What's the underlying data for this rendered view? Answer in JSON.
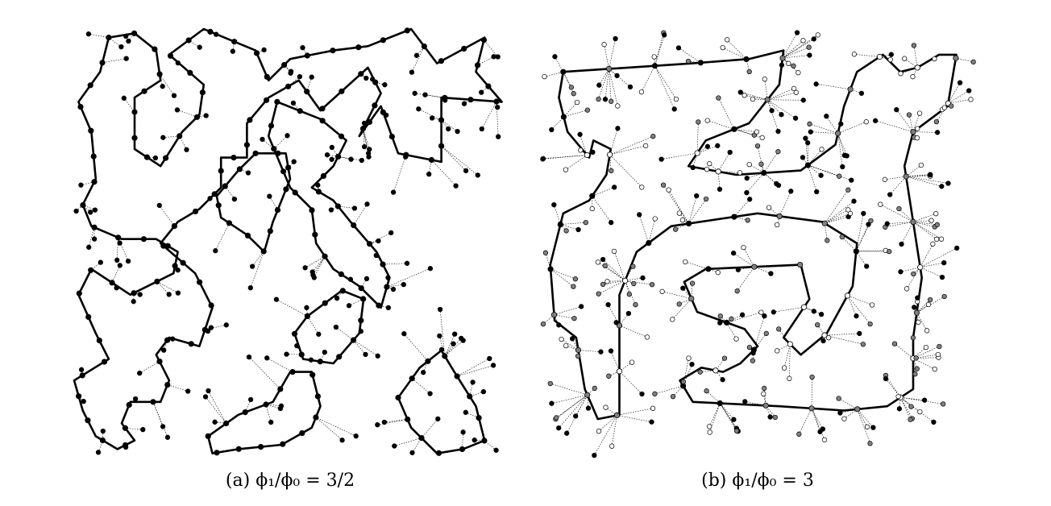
{
  "figure": {
    "panels": [
      {
        "id": "a",
        "caption_tag": "(a)",
        "caption_expr": "ϕ₁/ϕ₀ = 3/2",
        "seed": 17,
        "outer_points": 170,
        "path_points": 165,
        "node_colors": [
          "#000000"
        ],
        "loops": [
          [
            [
              0.08,
              0.02
            ],
            [
              0.14,
              0.01
            ],
            [
              0.19,
              0.05
            ],
            [
              0.2,
              0.12
            ],
            [
              0.14,
              0.16
            ],
            [
              0.14,
              0.28
            ],
            [
              0.2,
              0.32
            ],
            [
              0.25,
              0.24
            ],
            [
              0.29,
              0.2
            ],
            [
              0.3,
              0.13
            ],
            [
              0.22,
              0.06
            ],
            [
              0.3,
              0.0
            ],
            [
              0.42,
              0.05
            ],
            [
              0.45,
              0.12
            ],
            [
              0.5,
              0.07
            ],
            [
              0.6,
              0.05
            ],
            [
              0.68,
              0.04
            ],
            [
              0.78,
              0.0
            ],
            [
              0.84,
              0.08
            ],
            [
              0.95,
              0.02
            ],
            [
              0.93,
              0.1
            ],
            [
              0.99,
              0.17
            ],
            [
              0.85,
              0.16
            ],
            [
              0.85,
              0.31
            ],
            [
              0.75,
              0.29
            ],
            [
              0.71,
              0.18
            ],
            [
              0.66,
              0.25
            ],
            [
              0.71,
              0.15
            ],
            [
              0.68,
              0.09
            ],
            [
              0.57,
              0.19
            ],
            [
              0.52,
              0.12
            ],
            [
              0.45,
              0.16
            ],
            [
              0.4,
              0.22
            ],
            [
              0.4,
              0.3
            ],
            [
              0.34,
              0.3
            ],
            [
              0.34,
              0.37
            ],
            [
              0.29,
              0.42
            ],
            [
              0.24,
              0.45
            ],
            [
              0.2,
              0.5
            ],
            [
              0.28,
              0.57
            ],
            [
              0.32,
              0.65
            ],
            [
              0.29,
              0.74
            ],
            [
              0.22,
              0.72
            ],
            [
              0.19,
              0.76
            ],
            [
              0.22,
              0.82
            ],
            [
              0.2,
              0.87
            ],
            [
              0.13,
              0.87
            ],
            [
              0.11,
              0.92
            ],
            [
              0.14,
              0.96
            ],
            [
              0.1,
              0.98
            ],
            [
              0.05,
              0.95
            ],
            [
              0.02,
              0.89
            ],
            [
              0.0,
              0.82
            ],
            [
              0.08,
              0.77
            ],
            [
              0.05,
              0.71
            ],
            [
              0.01,
              0.62
            ],
            [
              0.04,
              0.56
            ],
            [
              0.13,
              0.62
            ],
            [
              0.23,
              0.57
            ],
            [
              0.24,
              0.52
            ],
            [
              0.19,
              0.49
            ],
            [
              0.11,
              0.49
            ],
            [
              0.04,
              0.46
            ],
            [
              0.02,
              0.41
            ],
            [
              0.05,
              0.35
            ],
            [
              0.04,
              0.24
            ],
            [
              0.01,
              0.17
            ],
            [
              0.06,
              0.1
            ]
          ],
          [
            [
              0.42,
              0.29
            ],
            [
              0.49,
              0.29
            ],
            [
              0.5,
              0.35
            ],
            [
              0.46,
              0.45
            ],
            [
              0.44,
              0.52
            ],
            [
              0.4,
              0.48
            ],
            [
              0.34,
              0.44
            ],
            [
              0.33,
              0.39
            ],
            [
              0.38,
              0.33
            ]
          ],
          [
            [
              0.47,
              0.17
            ],
            [
              0.57,
              0.21
            ],
            [
              0.63,
              0.26
            ],
            [
              0.6,
              0.32
            ],
            [
              0.55,
              0.37
            ],
            [
              0.6,
              0.4
            ],
            [
              0.64,
              0.45
            ],
            [
              0.7,
              0.52
            ],
            [
              0.73,
              0.58
            ],
            [
              0.71,
              0.65
            ],
            [
              0.66,
              0.6
            ],
            [
              0.6,
              0.56
            ],
            [
              0.56,
              0.5
            ],
            [
              0.55,
              0.42
            ],
            [
              0.5,
              0.37
            ],
            [
              0.45,
              0.25
            ]
          ],
          [
            [
              0.31,
              0.95
            ],
            [
              0.38,
              0.9
            ],
            [
              0.46,
              0.87
            ],
            [
              0.5,
              0.8
            ],
            [
              0.55,
              0.8
            ],
            [
              0.57,
              0.88
            ],
            [
              0.55,
              0.93
            ],
            [
              0.48,
              0.97
            ],
            [
              0.38,
              0.98
            ],
            [
              0.32,
              0.99
            ]
          ],
          [
            [
              0.54,
              0.67
            ],
            [
              0.62,
              0.61
            ],
            [
              0.67,
              0.63
            ],
            [
              0.66,
              0.71
            ],
            [
              0.6,
              0.78
            ],
            [
              0.53,
              0.77
            ],
            [
              0.51,
              0.71
            ]
          ],
          [
            [
              0.75,
              0.86
            ],
            [
              0.8,
              0.79
            ],
            [
              0.85,
              0.75
            ],
            [
              0.88,
              0.8
            ],
            [
              0.93,
              0.88
            ],
            [
              0.95,
              0.96
            ],
            [
              0.9,
              0.98
            ],
            [
              0.84,
              0.99
            ],
            [
              0.78,
              0.93
            ]
          ]
        ]
      },
      {
        "id": "b",
        "caption_tag": "(b)",
        "caption_expr": "ϕ₁/ϕ₀ = 3",
        "seed": 91,
        "outer_points": 330,
        "path_points": 60,
        "node_colors": [
          "#000000",
          "#808080",
          "#ffffff"
        ],
        "loops": [
          [
            [
              0.05,
              0.1
            ],
            [
              0.2,
              0.09
            ],
            [
              0.35,
              0.08
            ],
            [
              0.48,
              0.07
            ],
            [
              0.56,
              0.05
            ],
            [
              0.55,
              0.13
            ],
            [
              0.48,
              0.22
            ],
            [
              0.38,
              0.26
            ],
            [
              0.34,
              0.32
            ],
            [
              0.45,
              0.34
            ],
            [
              0.6,
              0.33
            ],
            [
              0.68,
              0.27
            ],
            [
              0.7,
              0.18
            ],
            [
              0.73,
              0.1
            ],
            [
              0.79,
              0.06
            ],
            [
              0.83,
              0.1
            ],
            [
              0.87,
              0.09
            ],
            [
              0.92,
              0.06
            ],
            [
              0.96,
              0.06
            ],
            [
              0.94,
              0.18
            ],
            [
              0.86,
              0.24
            ],
            [
              0.84,
              0.32
            ],
            [
              0.86,
              0.45
            ],
            [
              0.88,
              0.58
            ],
            [
              0.86,
              0.72
            ],
            [
              0.86,
              0.84
            ],
            [
              0.8,
              0.88
            ],
            [
              0.7,
              0.89
            ],
            [
              0.55,
              0.88
            ],
            [
              0.35,
              0.87
            ],
            [
              0.32,
              0.82
            ],
            [
              0.37,
              0.79
            ],
            [
              0.42,
              0.8
            ],
            [
              0.46,
              0.78
            ],
            [
              0.5,
              0.74
            ],
            [
              0.47,
              0.7
            ],
            [
              0.36,
              0.66
            ],
            [
              0.33,
              0.59
            ],
            [
              0.38,
              0.56
            ],
            [
              0.6,
              0.55
            ],
            [
              0.62,
              0.63
            ],
            [
              0.56,
              0.72
            ],
            [
              0.6,
              0.76
            ],
            [
              0.66,
              0.71
            ],
            [
              0.72,
              0.6
            ],
            [
              0.73,
              0.5
            ],
            [
              0.65,
              0.45
            ],
            [
              0.5,
              0.43
            ],
            [
              0.3,
              0.46
            ],
            [
              0.22,
              0.52
            ],
            [
              0.18,
              0.62
            ],
            [
              0.18,
              0.76
            ],
            [
              0.18,
              0.9
            ],
            [
              0.13,
              0.91
            ],
            [
              0.1,
              0.84
            ],
            [
              0.08,
              0.72
            ],
            [
              0.03,
              0.68
            ],
            [
              0.02,
              0.55
            ],
            [
              0.05,
              0.43
            ],
            [
              0.11,
              0.4
            ],
            [
              0.15,
              0.34
            ],
            [
              0.16,
              0.28
            ],
            [
              0.12,
              0.26
            ],
            [
              0.11,
              0.3
            ],
            [
              0.06,
              0.24
            ],
            [
              0.04,
              0.16
            ]
          ]
        ]
      }
    ]
  }
}
